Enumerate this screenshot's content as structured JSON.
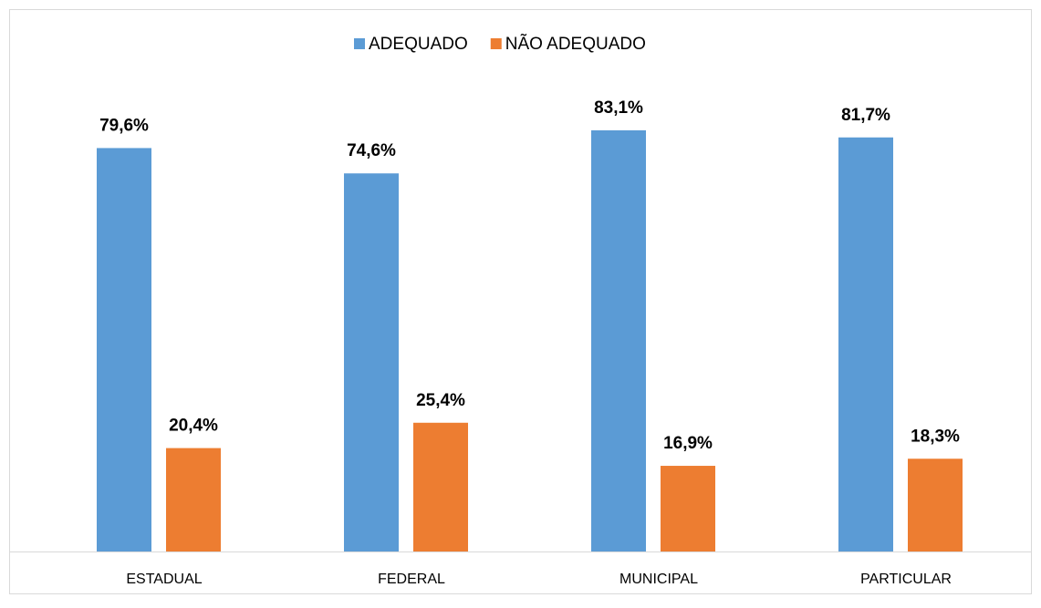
{
  "chart_data": {
    "type": "bar",
    "categories": [
      "ESTADUAL",
      "FEDERAL",
      "MUNICIPAL",
      "PARTICULAR"
    ],
    "series": [
      {
        "name": "ADEQUADO",
        "color": "#5b9bd5",
        "values": [
          79.6,
          74.6,
          83.1,
          81.7
        ],
        "value_labels": [
          "79,6%",
          "74,6%",
          "83,1%",
          "81,7%"
        ]
      },
      {
        "name": "NÃO ADEQUADO",
        "color": "#ed7d31",
        "values": [
          20.4,
          25.4,
          16.9,
          18.3
        ],
        "value_labels": [
          "20,4%",
          "25,4%",
          "16,9%",
          "18,3%"
        ]
      }
    ],
    "ylim": [
      0,
      100
    ],
    "legend": "top"
  }
}
